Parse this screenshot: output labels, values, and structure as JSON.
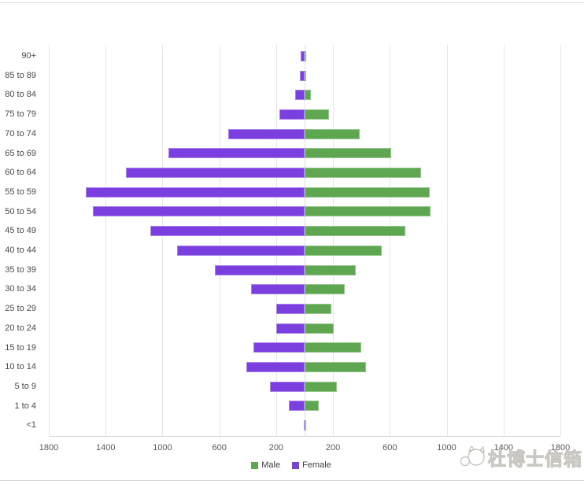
{
  "watermark": {
    "text": "杜博士信箱",
    "icon": "cat-face-icon"
  },
  "chart_data": {
    "type": "bar",
    "subtype": "population_pyramid",
    "orientation": "horizontal",
    "title": "",
    "categories_top_to_bottom": [
      "90+",
      "85 to 89",
      "80 to 84",
      "75 to 79",
      "70 to 74",
      "65 to 69",
      "60 to 64",
      "55 to 59",
      "50 to 54",
      "45 to 49",
      "40 to 44",
      "35 to 39",
      "30 to 34",
      "25 to 29",
      "20 to 24",
      "15 to 19",
      "10 to 14",
      "5 to 9",
      "1 to 4",
      "<1"
    ],
    "series": [
      {
        "name": "Male",
        "side": "right",
        "color": "#5FA651",
        "values": [
          5,
          5,
          45,
          170,
          390,
          610,
          820,
          880,
          885,
          710,
          545,
          360,
          280,
          190,
          205,
          400,
          430,
          225,
          100,
          10
        ]
      },
      {
        "name": "Female",
        "side": "left",
        "color": "#7B3FE0",
        "values": [
          25,
          35,
          65,
          180,
          540,
          960,
          1255,
          1540,
          1490,
          1085,
          900,
          630,
          375,
          200,
          200,
          360,
          410,
          245,
          110,
          5
        ]
      }
    ],
    "x_axis": {
      "max_each_side": 1800,
      "ticks_each_side": [
        200,
        600,
        1000,
        1400,
        1800
      ],
      "tick_labels": [
        "1800",
        "1400",
        "1000",
        "600",
        "200",
        "200",
        "600",
        "1000",
        "1400",
        "1800"
      ],
      "gridlines": true,
      "center_line": true
    },
    "legend": {
      "position": "bottom-center",
      "entries": [
        {
          "label": "Male",
          "color": "#5FA651"
        },
        {
          "label": "Female",
          "color": "#7B3FE0"
        }
      ]
    }
  }
}
